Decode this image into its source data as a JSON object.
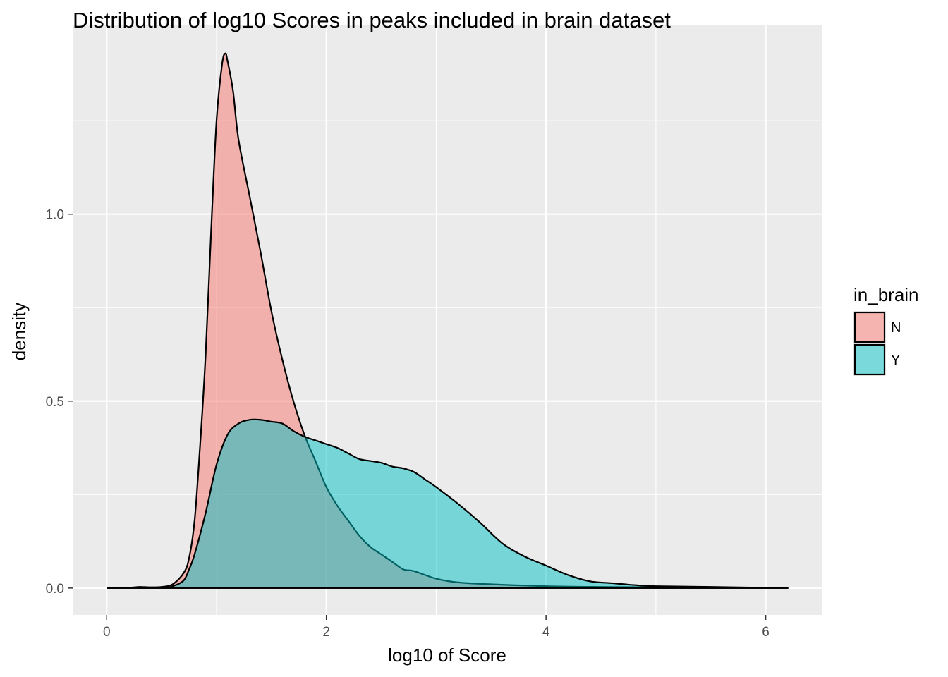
{
  "chart_data": {
    "type": "area",
    "title": "Distribution of log10 Scores in peaks included in brain dataset",
    "xlabel": "log10 of Score",
    "ylabel": "density",
    "xlim": [
      -0.31,
      6.51
    ],
    "ylim": [
      -0.072,
      1.505
    ],
    "x_ticks": [
      0,
      2,
      4,
      6
    ],
    "x_tick_labels": [
      "0",
      "2",
      "4",
      "6"
    ],
    "x_minor_ticks": [
      1,
      3,
      5
    ],
    "y_ticks": [
      0.0,
      0.5,
      1.0
    ],
    "y_tick_labels": [
      "0.0",
      "0.5",
      "1.0"
    ],
    "y_minor_ticks": [
      0.25,
      0.75,
      1.25
    ],
    "grid": true,
    "legend": {
      "title": "in_brain",
      "position": "right"
    },
    "series": [
      {
        "name": "N",
        "color": "#F8766D",
        "x": [
          0.0,
          0.2,
          0.3,
          0.4,
          0.5,
          0.6,
          0.7,
          0.75,
          0.8,
          0.85,
          0.9,
          0.95,
          1.0,
          1.05,
          1.08,
          1.1,
          1.15,
          1.2,
          1.3,
          1.4,
          1.5,
          1.6,
          1.7,
          1.8,
          1.9,
          2.0,
          2.1,
          2.2,
          2.3,
          2.4,
          2.5,
          2.6,
          2.7,
          2.8,
          3.0,
          3.2,
          3.5,
          4.0,
          4.5,
          5.0,
          5.5,
          6.2
        ],
        "y": [
          0.0,
          0.001,
          0.003,
          0.002,
          0.003,
          0.01,
          0.04,
          0.08,
          0.18,
          0.38,
          0.62,
          0.95,
          1.25,
          1.4,
          1.43,
          1.41,
          1.33,
          1.2,
          1.05,
          0.9,
          0.74,
          0.61,
          0.5,
          0.41,
          0.34,
          0.27,
          0.22,
          0.18,
          0.14,
          0.11,
          0.09,
          0.07,
          0.05,
          0.045,
          0.025,
          0.015,
          0.01,
          0.005,
          0.003,
          0.002,
          0.001,
          0.0
        ]
      },
      {
        "name": "Y",
        "color": "#00BFC4",
        "x": [
          0.0,
          0.5,
          0.6,
          0.7,
          0.75,
          0.8,
          0.9,
          1.0,
          1.1,
          1.2,
          1.3,
          1.4,
          1.5,
          1.6,
          1.7,
          1.8,
          1.9,
          2.0,
          2.1,
          2.2,
          2.3,
          2.4,
          2.5,
          2.6,
          2.7,
          2.8,
          2.9,
          3.0,
          3.2,
          3.4,
          3.6,
          3.8,
          4.0,
          4.2,
          4.4,
          4.6,
          4.8,
          5.0,
          5.5,
          6.2
        ],
        "y": [
          0.0,
          0.001,
          0.005,
          0.02,
          0.05,
          0.09,
          0.2,
          0.33,
          0.41,
          0.44,
          0.45,
          0.45,
          0.445,
          0.44,
          0.42,
          0.405,
          0.395,
          0.385,
          0.375,
          0.36,
          0.345,
          0.34,
          0.335,
          0.325,
          0.32,
          0.31,
          0.29,
          0.27,
          0.225,
          0.175,
          0.12,
          0.085,
          0.06,
          0.035,
          0.018,
          0.013,
          0.008,
          0.005,
          0.003,
          0.0
        ]
      }
    ]
  }
}
